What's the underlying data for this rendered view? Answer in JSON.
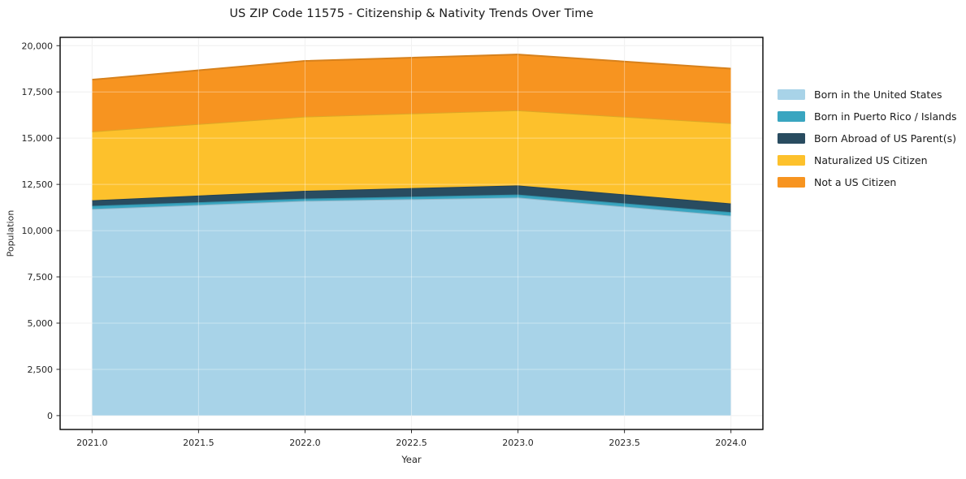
{
  "chart_data": {
    "type": "area",
    "stacked": true,
    "title": "US ZIP Code 11575 - Citizenship & Nativity Trends Over Time",
    "xlabel": "Year",
    "ylabel": "Population",
    "x": [
      2021,
      2022,
      2023,
      2024
    ],
    "series": [
      {
        "name": "Born in the United States",
        "color": "#a8d3e8",
        "values": [
          11170,
          11610,
          11790,
          10810
        ]
      },
      {
        "name": "Born in Puerto Rico / Islands",
        "color": "#39a5c0",
        "values": [
          175,
          120,
          160,
          190
        ]
      },
      {
        "name": "Born Abroad of US Parent(s)",
        "color": "#294c60",
        "values": [
          295,
          425,
          495,
          470
        ]
      },
      {
        "name": "Naturalized US Citizen",
        "color": "#fdc12c",
        "values": [
          3720,
          4010,
          4060,
          4340
        ]
      },
      {
        "name": "Not a US Citizen",
        "color": "#f79420",
        "values": [
          2800,
          3010,
          3020,
          2950
        ]
      }
    ],
    "totals": [
      18160,
      19175,
      19525,
      18760
    ],
    "xlim": [
      2020.85,
      2024.15
    ],
    "ylim": [
      -750,
      20450
    ],
    "x_tick_values": [
      2021.0,
      2021.5,
      2022.0,
      2022.5,
      2023.0,
      2023.5,
      2024.0
    ],
    "x_tick_labels": [
      "2021.0",
      "2021.5",
      "2022.0",
      "2022.5",
      "2023.0",
      "2023.5",
      "2024.0"
    ],
    "y_tick_values": [
      0,
      2500,
      5000,
      7500,
      10000,
      12500,
      15000,
      17500,
      20000
    ],
    "y_tick_labels": [
      "0",
      "2,500",
      "5,000",
      "7,500",
      "10,000",
      "12,500",
      "15,000",
      "17,500",
      "20,000"
    ],
    "grid": true,
    "legend_position": "center-right",
    "colors": {
      "spine": "#000000",
      "tick": "#262626",
      "grid": "#e8e8e8",
      "grid_overlay": "rgba(255,255,255,0.38)",
      "text": "#262626"
    }
  }
}
